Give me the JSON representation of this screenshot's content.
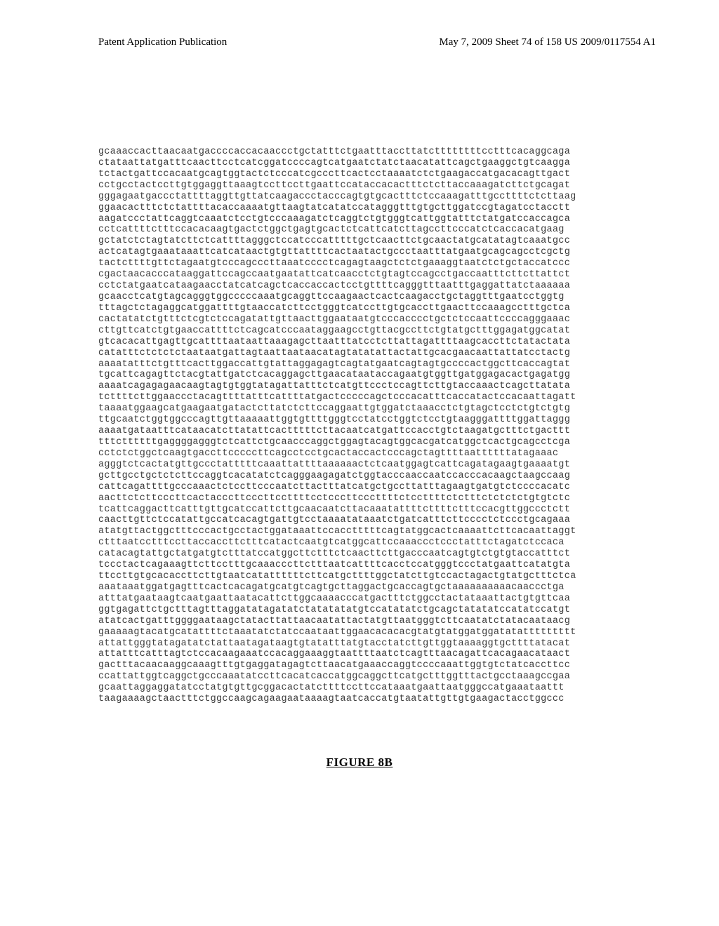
{
  "header": {
    "left": "Patent Application Publication",
    "right": "May 7, 2009  Sheet 74 of 158    US 2009/0117554 A1"
  },
  "sequence_text": "gcaaaccacttaacaatgaccccaccacaaccctgctatttctgaatttaccttatcttttttttcctttcacaggcaga\nctataattatgatttcaacttcctcatcggatccccagtcatgaatctatctaacatattcagctgaaggctgtcaagga\ntctactgattccacaatgcagtggtactctcccatcgcccttcactcctaaaatctctgaagaccatgacacagttgact\ncctgcctactccttgtggaggttaaagtccttccttgaattccataccacactttctcttaccaaagatcttctgcagat\ngggagaatgaccctattttaggttgttatcaagaccctacccagtgtgcactttctccaaagatttgccttttctcttaag\nggaacactttctctattttacaccaaaatgttaagtatcatatccatagggtttgtgcttggatccgtagatcctacctt\naagatccctattcaggtcaaatctcctgtcccaaagatctcaggtctgtgggtcattggtatttctatgatccaccagca\ncctcattttctttccacacaagtgactctggctgagtgcactctcattcatcttagccttcccatctcaccacatgaag\ngctatctctagtatcttctcattttagggctccatcccatttttgctcaacttctgcaactatgcatatagtcaaatgcc\nactcatagtgaaataaattcatcataactgtgttattttcactaatactgccctaatttatgaatgcagcagcctcgctg\ntactcttttgttctagaatgtcccagcccttaaatcccctcagagtaagctctctgaaaggtaatctctgctaccatccc\ncgactaacacccataaggattccagccaatgaatattcatcaacctctgtagtccagcctgaccaatttcttcttattct\ncctctatgaatcataagaacctatcatcagctcaccaccactcctgttttcagggtttaatttgaggattatctaaaaaa\ngcaacctcatgtagcagggtggcccccaaatgcaggttccaagaactcactcaagacctgctaggtttgaatcctggtg\ntttagctctagaggcatggattttgtaaccatcttcctgggtcatccttgtgcaccttgaacttccaaagcctttgctca\ncactatatctgtttctcgtctccagatattgttaacttggaataatgtcccacccctgctctccaattccccagggaaac\ncttgttcatctgtgaaccattttctcagcatcccaataggaagcctgttacgccttctgtatgctttggagatggcatat\ngtcacacattgagttgcattttaataattaaagagcttaatttatcctcttattagattttaagcaccttctatactata\ncatatttctctctctaataatgattagtaattaataacatagtatatattactattgcacgaacaattattatcctactg\naaaatatttctgtttcacttggaccattgtattaggagagtcagtatgaatcagtagtgccccactggcttcaccagtat\ntgcattcagagttctacgtattgatctcacaggagcttgaacataataccagaatgtggttgatggagacactgagatgg\naaaatcagagagaacaagtagtgtggtatagattatttctcatgttccctccagttcttgtaccaaactcagcttatata\ntcttttcttggaaccctacagttttatttcattttatgactcccccagctcccacatttcaccatactccacaattagatt\ntaaaatggaagcatgaagaatgatactcttatctcttccaggaattgtggatctaaacctctgtagctcctctgtctgtg\nttgcaatctggtggcccagttgttaaaaattggtgttttgggtcctatcctggtctcctgtaagggattttggattaggg\naaaatgataatttcataacatcttatattcactttttcttacaatcatgattccacctgtctaagatgctttctgacttt\ntttcttttttgaggggagggtctcattctgcaacccaggctggagtacagtggcacgatcatggctcactgcagcctcga\ncctctctggctcaagtgaccttcccccttcagcctcctgcactaccactcccagctagttttaattttttatagaaac\nagggtctcactatgttgccctatttttcaaattattttaaaaaactctcaatggagtcattcagatagaagtgaaaatgt\ngcttgcctgctctcttccaggtcacatatctcagggaagagatctggtacccaaccaatccacccacaagctaagccaag\ncattcagattttgcccaaactctccttcccaatcttactttatcatgctgccttatttagaagtgatgtctccccacatc\naacttctcttcccttcactacccttcccttccttttcctcccttcccttttctccttttctctttctctctctgtgtctc\ntcattcaggacttcatttgttgcatccattcttgcaacaatcttacaaatattttcttttctttccacgttggccctctt\ncaacttgttctccatattgccatcacagtgattgtcctaaaatataaatctgatcatttcttcccctctccctgcagaaa\natatgttactggctttcccactgcctactggataaattccacctttttcagtatggcactcaaaattcttcacaattaggt\nctttaatcctttccttaccaccttctttcatactcaatgtcatggcattccaaaccctccctatttctagatctccaca\ncatacagtattgctatgatgtctttatccatggcttctttctcaacttcttgacccaatcagtgtctgtgtaccatttct\ntccctactcagaaagttcttcctttgcaaacccttctttaatcattttcacctccatgggtccctatgaattcatatgta\nttccttgtgcacaccttcttgtaatcatattttttcttcatgcttttggctatcttgtccactagactgtatgctttctca\naaataaatggatgagtttcactcacagatgcatgtcagtgcttaggactgcaccagtgctaaaaaaaaaacaaccctga\natttatgaataagtcaatgaattaatacattcttggcaaaacccatgactttctggcctactataaattactgtgttcaa\nggtgagattctgctttagtttaggatatagatatctatatatatgtccatatatctgcagctatatatccatatccatgt\natatcactgatttggggaataagctatacttattaacaatattactatgttaatgggtcttcaatatctatacaataacg\ngaaaaagtacatgcatattttctaaatatctatccaataattggaacacacacgtatgtatggatggatatattttttttt\nattattgggtatagatatctattaatagataagtgtatatttatgtacctatcttgttggtaaaaggtgcttttatacat\nattatttcatttagtctccacaagaaatccacaggaaaggtaattttaatctcagtttaacagattcacagaacataact\ngactttacaacaaggcaaagtttgtgaggatagagtcttaacatgaaaccaggtccccaaattggtgtctatcaccttcc\nccattattggtcaggctgcccaaatatccttcacatcaccatggcaggcttcatgctttggtttactgcctaaagccgaa\ngcaattaggaggatatcctatgtgttgcggacactatcttttccttccataaatgaattaatgggccatgaaataattt\ntaagaaaagctaactttctggccaagcagaagaataaaagtaatcaccatgtaatattgttgtgaagactacctggccc",
  "figure_label": "FIGURE 8B"
}
